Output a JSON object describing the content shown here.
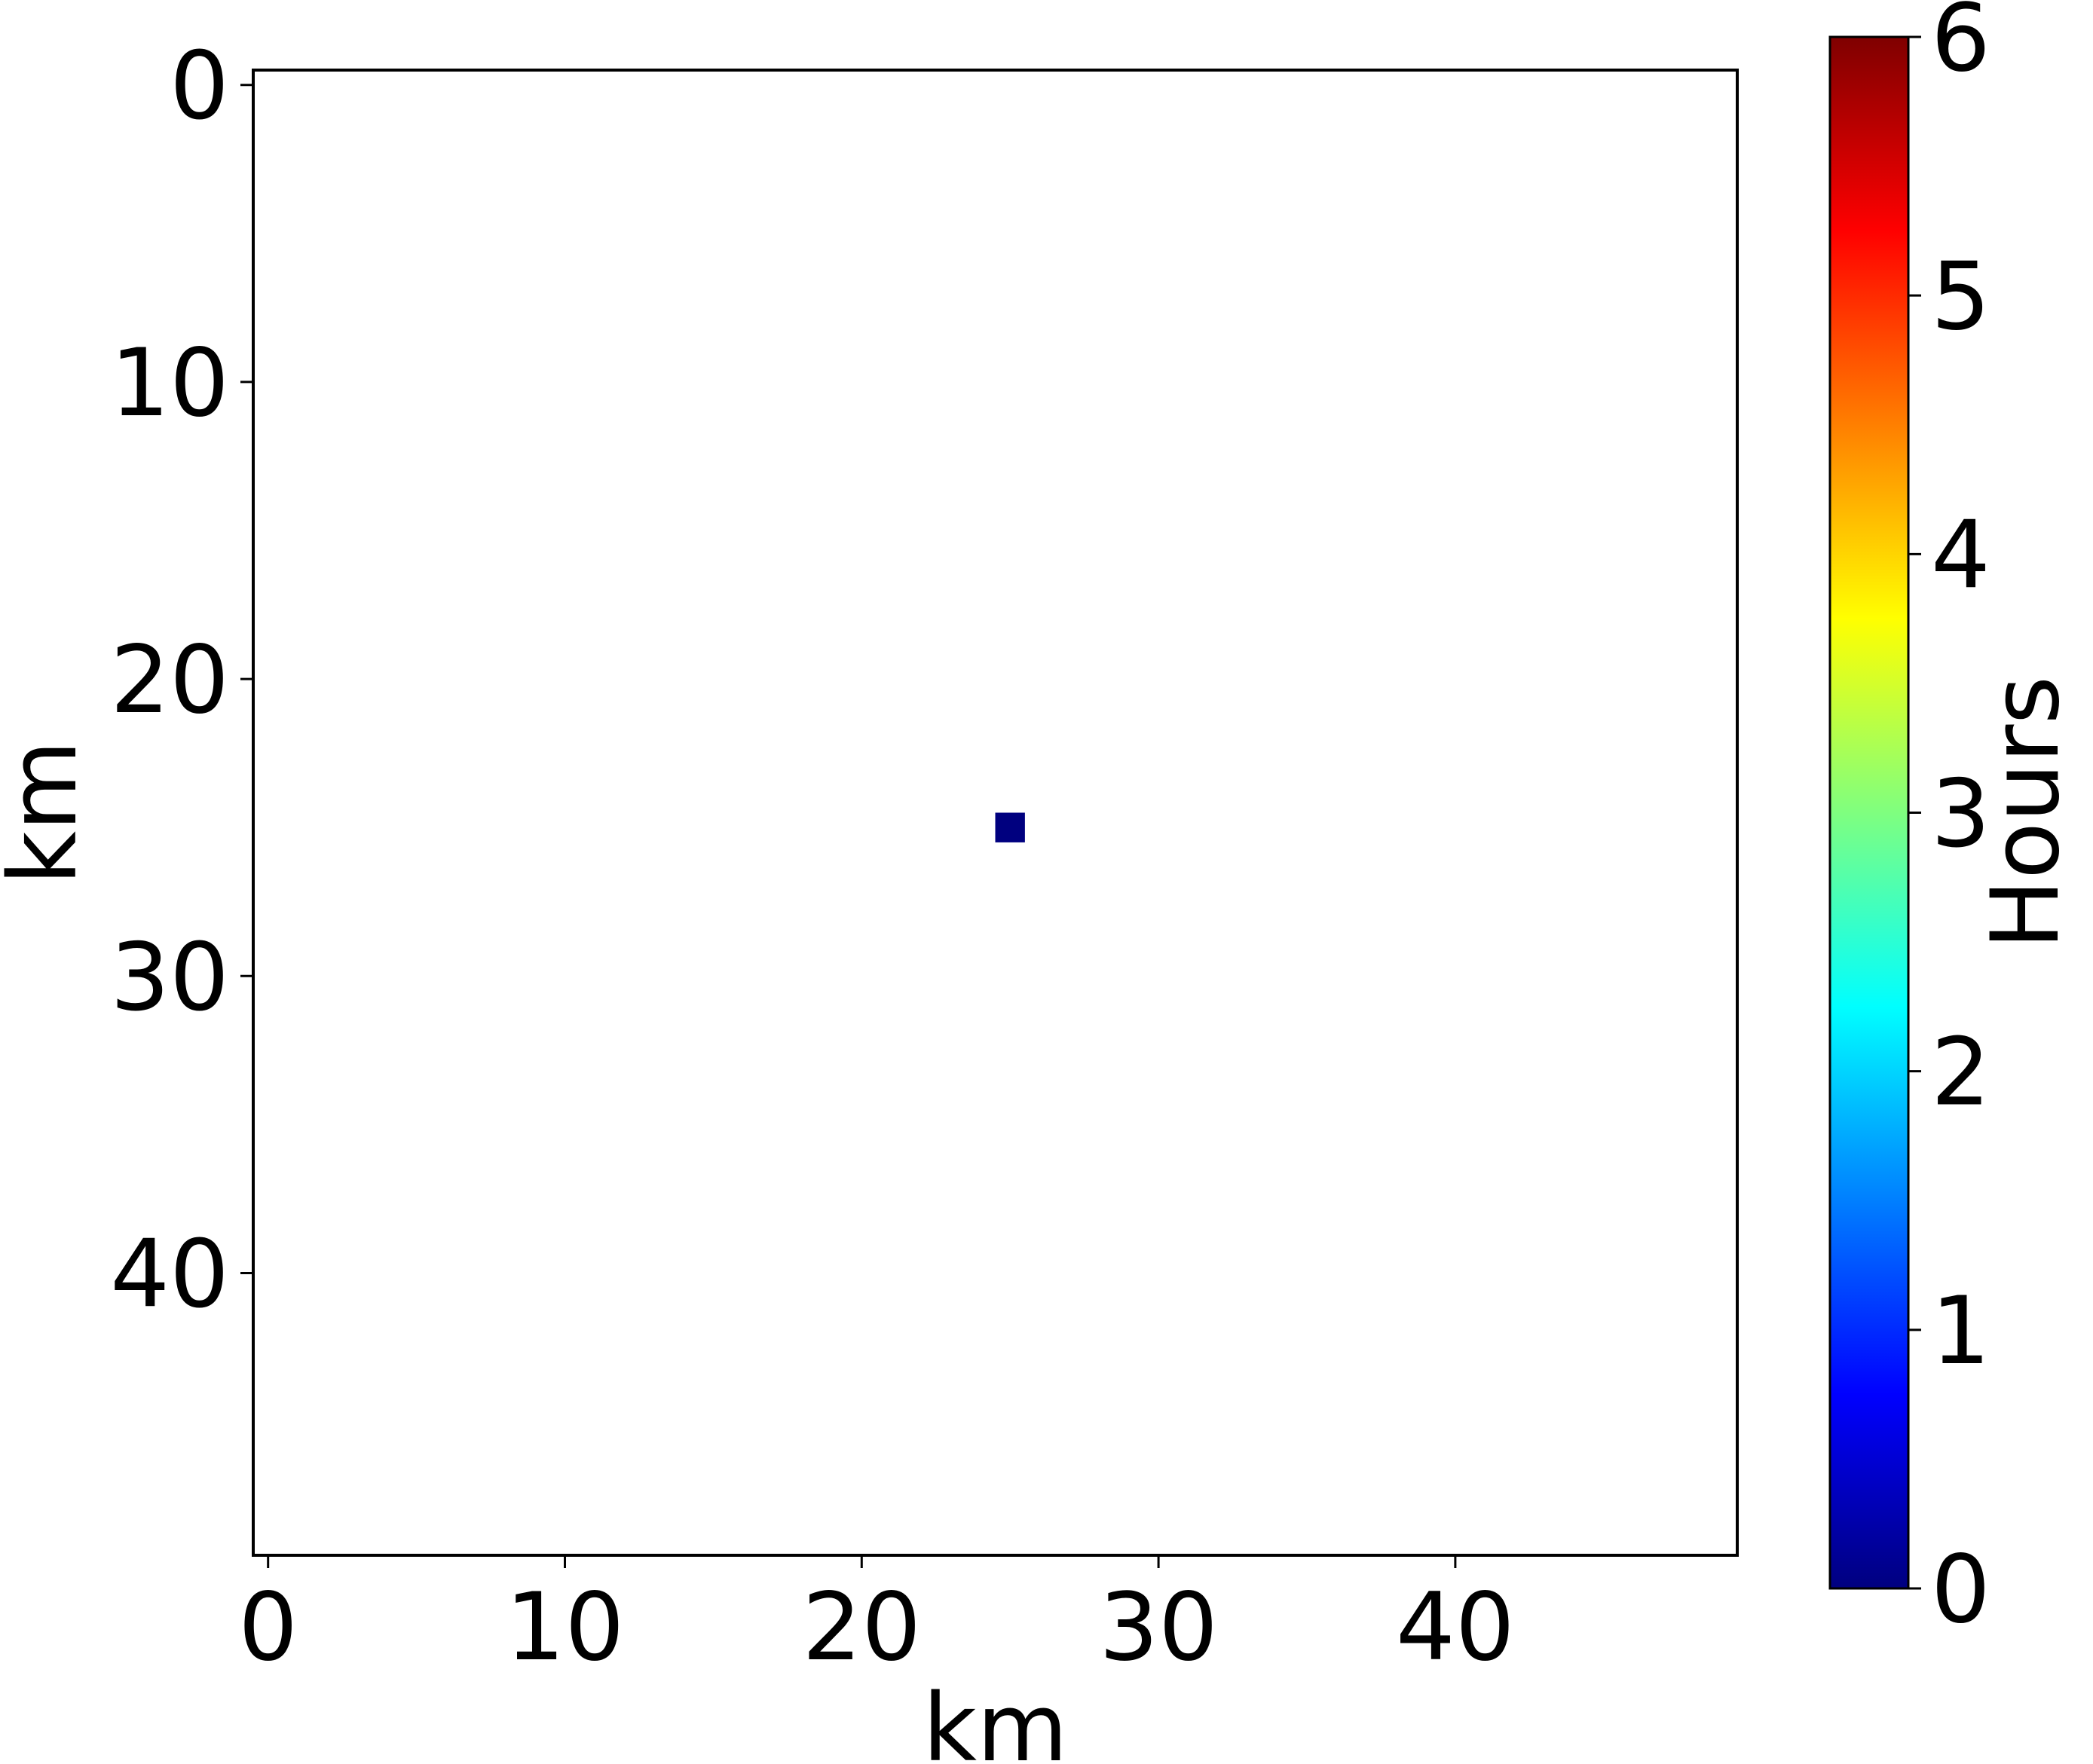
{
  "chart_data": {
    "type": "heatmap",
    "title": "",
    "xlabel": "km",
    "ylabel": "km",
    "xlim": [
      -0.5,
      49.5
    ],
    "ylim": [
      49.5,
      -0.5
    ],
    "y_axis_inverted": true,
    "xticks": [
      0,
      10,
      20,
      30,
      40
    ],
    "yticks": [
      0,
      10,
      20,
      30,
      40
    ],
    "xtick_labels": [
      "0",
      "10",
      "20",
      "30",
      "40"
    ],
    "ytick_labels": [
      "0",
      "10",
      "20",
      "30",
      "40"
    ],
    "grid": false,
    "cells": [
      {
        "x": 25,
        "y": 25,
        "value": 0
      }
    ],
    "colorbar": {
      "label": "Hours",
      "colormap": "jet",
      "range": [
        0,
        6
      ],
      "ticks": [
        0,
        1,
        2,
        3,
        4,
        5,
        6
      ],
      "tick_labels": [
        "0",
        "1",
        "2",
        "3",
        "4",
        "5",
        "6"
      ],
      "stops": [
        "#00007f",
        "#0000ff",
        "#007fff",
        "#00ffff",
        "#7fff7f",
        "#ffff00",
        "#ff7f00",
        "#ff0000",
        "#7f0000"
      ]
    }
  }
}
